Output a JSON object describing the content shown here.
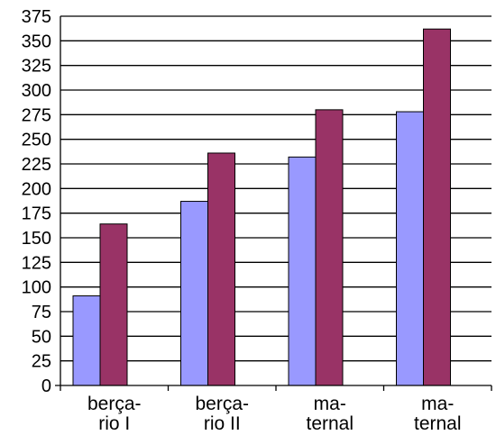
{
  "chart_data": {
    "type": "bar",
    "categories": [
      [
        "berça-",
        "rio I"
      ],
      [
        "berça-",
        "rio II"
      ],
      [
        "ma-",
        "ternal"
      ],
      [
        "ma-",
        "ternal"
      ]
    ],
    "series": [
      {
        "values": [
          91,
          187,
          232,
          278
        ],
        "color": "#9999ff"
      },
      {
        "values": [
          164,
          236,
          280,
          362
        ],
        "color": "#993366"
      }
    ],
    "yticks": [
      "0",
      "25",
      "50",
      "75",
      "100",
      "125",
      "150",
      "175",
      "200",
      "225",
      "250",
      "275",
      "300",
      "325",
      "350",
      "375"
    ],
    "ylim": [
      0,
      375
    ],
    "grid": true,
    "legend": "none"
  }
}
